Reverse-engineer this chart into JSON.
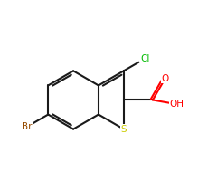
{
  "background_color": "#ffffff",
  "bond_color": "#1a1a1a",
  "cl_color": "#00bb00",
  "br_color": "#964B00",
  "s_color": "#cccc00",
  "o_color": "#ff0000",
  "oh_color": "#ff0000",
  "figsize": [
    2.4,
    2.0
  ],
  "dpi": 100,
  "bond_lw": 1.5,
  "scale": 0.22,
  "xlim": [
    -0.75,
    0.85
  ],
  "ylim": [
    -0.65,
    0.7
  ]
}
